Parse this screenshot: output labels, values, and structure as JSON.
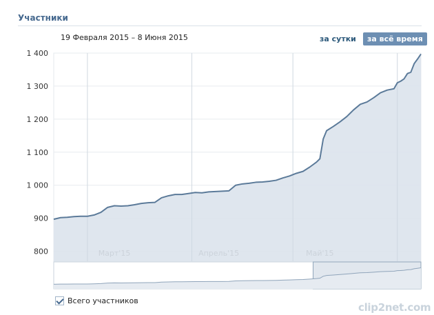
{
  "section_title": "Участники",
  "date_range": "19 Февраля 2015 – 8 Июня 2015",
  "period_tabs": {
    "day": "за сутки",
    "all_time": "за всё время",
    "active": "all_time"
  },
  "legend": {
    "label": "Всего участников",
    "checked": true
  },
  "watermark": "clip2net.com",
  "colors": {
    "line": "#5b7a99",
    "fill": "#dbe3ec",
    "accent": "#45688e",
    "selection": "#cdd7e2"
  },
  "chart_data": {
    "type": "area",
    "title": "",
    "xlabel": "",
    "ylabel": "",
    "ylim": [
      770,
      1400
    ],
    "yticks": [
      800,
      900,
      1000,
      1100,
      1200,
      1300,
      1400
    ],
    "ytick_labels": [
      "800",
      "900",
      "1 000",
      "1 100",
      "1 200",
      "1 300",
      "1 400"
    ],
    "xlim": [
      "2015-02-19",
      "2015-06-08"
    ],
    "xticks": [
      {
        "date": "2015-03-01",
        "label": ""
      },
      {
        "date": "2015-03-09",
        "label": "Март'15"
      },
      {
        "date": "2015-04-01",
        "label": ""
      },
      {
        "date": "2015-04-09",
        "label": "Апрель'15"
      },
      {
        "date": "2015-05-01",
        "label": ""
      },
      {
        "date": "2015-05-09",
        "label": "Май'15"
      },
      {
        "date": "2015-06-01",
        "label": ""
      }
    ],
    "grid": true,
    "series": [
      {
        "name": "Всего участников",
        "points": [
          [
            "2015-02-19",
            897
          ],
          [
            "2015-02-21",
            902
          ],
          [
            "2015-02-23",
            903
          ],
          [
            "2015-02-25",
            905
          ],
          [
            "2015-02-27",
            906
          ],
          [
            "2015-03-01",
            906
          ],
          [
            "2015-03-03",
            910
          ],
          [
            "2015-03-05",
            918
          ],
          [
            "2015-03-07",
            933
          ],
          [
            "2015-03-09",
            938
          ],
          [
            "2015-03-11",
            937
          ],
          [
            "2015-03-13",
            938
          ],
          [
            "2015-03-15",
            941
          ],
          [
            "2015-03-17",
            945
          ],
          [
            "2015-03-19",
            947
          ],
          [
            "2015-03-21",
            948
          ],
          [
            "2015-03-23",
            962
          ],
          [
            "2015-03-25",
            968
          ],
          [
            "2015-03-27",
            972
          ],
          [
            "2015-03-29",
            972
          ],
          [
            "2015-03-31",
            975
          ],
          [
            "2015-04-02",
            978
          ],
          [
            "2015-04-04",
            977
          ],
          [
            "2015-04-06",
            980
          ],
          [
            "2015-04-08",
            981
          ],
          [
            "2015-04-10",
            982
          ],
          [
            "2015-04-12",
            983
          ],
          [
            "2015-04-14",
            1000
          ],
          [
            "2015-04-16",
            1004
          ],
          [
            "2015-04-18",
            1006
          ],
          [
            "2015-04-20",
            1009
          ],
          [
            "2015-04-22",
            1010
          ],
          [
            "2015-04-24",
            1012
          ],
          [
            "2015-04-26",
            1015
          ],
          [
            "2015-04-28",
            1022
          ],
          [
            "2015-04-30",
            1028
          ],
          [
            "2015-05-02",
            1036
          ],
          [
            "2015-05-04",
            1042
          ],
          [
            "2015-05-06",
            1055
          ],
          [
            "2015-05-08",
            1070
          ],
          [
            "2015-05-09",
            1080
          ],
          [
            "2015-05-10",
            1140
          ],
          [
            "2015-05-11",
            1165
          ],
          [
            "2015-05-13",
            1178
          ],
          [
            "2015-05-15",
            1192
          ],
          [
            "2015-05-17",
            1208
          ],
          [
            "2015-05-19",
            1228
          ],
          [
            "2015-05-21",
            1245
          ],
          [
            "2015-05-23",
            1252
          ],
          [
            "2015-05-25",
            1265
          ],
          [
            "2015-05-27",
            1280
          ],
          [
            "2015-05-29",
            1288
          ],
          [
            "2015-05-31",
            1292
          ],
          [
            "2015-06-01",
            1310
          ],
          [
            "2015-06-02",
            1315
          ],
          [
            "2015-06-03",
            1322
          ],
          [
            "2015-06-04",
            1338
          ],
          [
            "2015-06-05",
            1342
          ],
          [
            "2015-06-06",
            1368
          ],
          [
            "2015-06-07",
            1382
          ],
          [
            "2015-06-08",
            1397
          ]
        ]
      }
    ],
    "navigator": {
      "selected_from": "2015-05-07",
      "selected_to": "2015-06-08"
    }
  }
}
